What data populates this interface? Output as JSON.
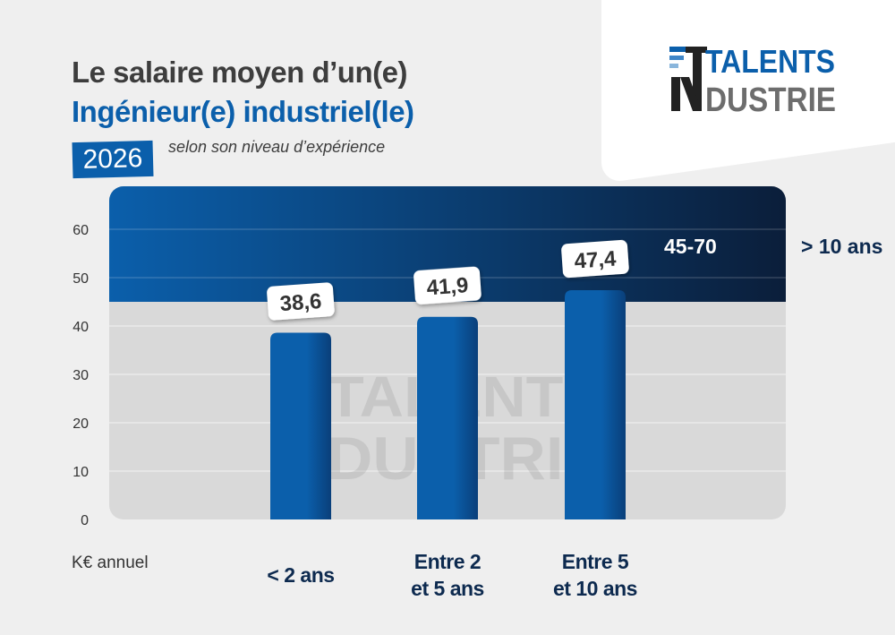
{
  "title_line1": "Le salaire moyen d’un(e)",
  "title_line2": "Ingénieur(e) industriel(le)",
  "year": "2026",
  "subtitle": "selon son niveau d’expérience",
  "logo": {
    "top": "TALENTS",
    "bottom": "DUSTRIE",
    "prefix": "IN"
  },
  "colors": {
    "brand_blue": "#0b5fab",
    "dark_navy": "#0b1e3a",
    "logo_gray": "#6d6d6d"
  },
  "chart_data": {
    "type": "bar",
    "ylabel": "K€ annuel",
    "ylim": [
      0,
      70
    ],
    "yticks": [
      0,
      10,
      20,
      30,
      40,
      50,
      60
    ],
    "grid": true,
    "categories": [
      "< 2 ans",
      "Entre 2\net 5 ans",
      "Entre 5\net 10 ans"
    ],
    "values": [
      38.6,
      41.9,
      47.4
    ],
    "value_labels": [
      "38,6",
      "41,9",
      "47,4"
    ],
    "range_band": {
      "category": "> 10 ans",
      "label": "45-70",
      "from": 45,
      "to": 70
    }
  }
}
